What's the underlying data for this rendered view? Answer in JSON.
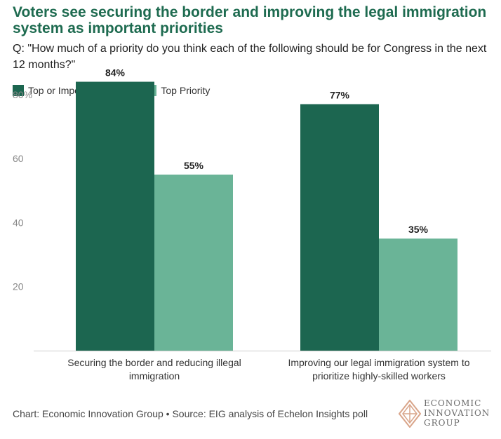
{
  "title": "Voters see securing the border and improving the legal immigration system as important priorities",
  "subtitle": "Q: \"How much of a priority do you think each of the following should be for Congress in the next 12 months?\"",
  "footer": "Chart: Economic Innovation Group • Source: EIG analysis of Echelon Insights poll",
  "logo": {
    "line1": "ECONOMIC",
    "line2": "INNOVATION",
    "line3": "GROUP"
  },
  "colors": {
    "title": "#1e6b50",
    "series_dark": "#1c6650",
    "series_light": "#6ab497",
    "gridline": "#cccccc",
    "tick": "#888888"
  },
  "chart_data": {
    "type": "bar",
    "categories": [
      "Securing the border and reducing illegal immigration",
      "Improving our legal immigration system to prioritize highly-skilled workers"
    ],
    "category_lines": [
      [
        "Securing the border and reducing illegal",
        "immigration"
      ],
      [
        "Improving our legal immigration system to",
        "prioritize highly-skilled workers"
      ]
    ],
    "series": [
      {
        "name": "Top or Important Priority",
        "values": [
          84,
          77
        ],
        "labels": [
          "84%",
          "77%"
        ],
        "color": "#1c6650"
      },
      {
        "name": "Top Priority",
        "values": [
          55,
          35
        ],
        "labels": [
          "55%",
          "35%"
        ],
        "color": "#6ab497"
      }
    ],
    "ylim": [
      0,
      85
    ],
    "yticks": [
      20,
      40,
      60,
      80
    ],
    "ytick_labels": [
      "20",
      "40",
      "60",
      "80%"
    ],
    "legend_position": "top-left",
    "grid": false
  }
}
